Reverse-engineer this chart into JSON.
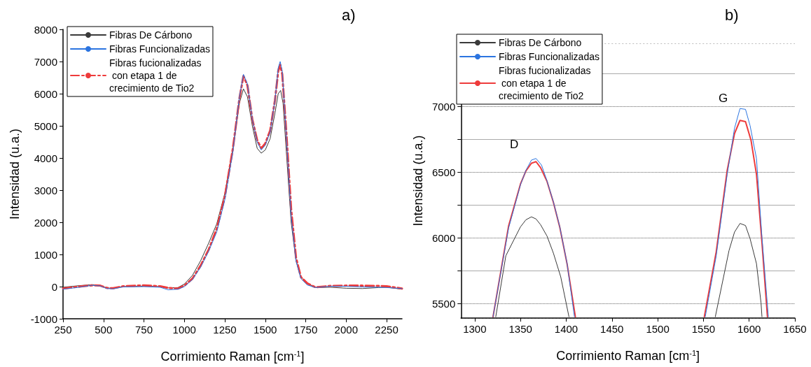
{
  "chart_data": [
    {
      "type": "line",
      "title": "a)",
      "xlabel": "Corrimiento Raman [cm$^{-1}$]",
      "ylabel": "Intensidad (u.a.)",
      "xlim": [
        250,
        2345
      ],
      "xticks": [
        250,
        500,
        750,
        1000,
        1250,
        1500,
        1750,
        2000,
        2250
      ],
      "ylim": [
        -1000,
        8000
      ],
      "yticks": [
        -1000,
        0,
        1000,
        2000,
        3000,
        4000,
        5000,
        6000,
        7000,
        8000
      ],
      "grid": false,
      "legend": "top left",
      "marker": "none",
      "series": [
        {
          "name": "Fibras De Cárbono",
          "color": "#3a3a3a",
          "line_style": "solid",
          "x": [
            250,
            350,
            430,
            470,
            520,
            560,
            620,
            750,
            850,
            900,
            960,
            1000,
            1050,
            1100,
            1150,
            1200,
            1250,
            1300,
            1340,
            1365,
            1390,
            1420,
            1450,
            1475,
            1500,
            1530,
            1560,
            1580,
            1595,
            1610,
            1630,
            1660,
            1690,
            1720,
            1760,
            1810,
            1900,
            2000,
            2100,
            2200,
            2250,
            2345
          ],
          "values": [
            -20,
            30,
            60,
            40,
            -40,
            -60,
            0,
            10,
            0,
            -40,
            -30,
            80,
            350,
            800,
            1350,
            1950,
            2900,
            4300,
            5700,
            6150,
            5900,
            5000,
            4300,
            4150,
            4250,
            4600,
            5400,
            6000,
            6100,
            5700,
            4200,
            2000,
            800,
            300,
            100,
            -30,
            -20,
            -50,
            -60,
            -30,
            -20,
            -80
          ]
        },
        {
          "name": "Fibras Funcionalizadas",
          "color": "#2b74e0",
          "line_style": "solid",
          "x": [
            250,
            350,
            430,
            480,
            520,
            560,
            620,
            750,
            850,
            900,
            960,
            1000,
            1050,
            1100,
            1150,
            1200,
            1250,
            1300,
            1340,
            1365,
            1390,
            1420,
            1450,
            1475,
            1500,
            1530,
            1560,
            1580,
            1592,
            1605,
            1630,
            1660,
            1690,
            1720,
            1760,
            1810,
            1900,
            2000,
            2100,
            2200,
            2250,
            2345
          ],
          "values": [
            -80,
            -20,
            40,
            20,
            -60,
            -70,
            -10,
            0,
            -20,
            -100,
            -80,
            0,
            220,
            600,
            1100,
            1700,
            2700,
            4200,
            5900,
            6600,
            6300,
            5200,
            4500,
            4250,
            4400,
            4800,
            5800,
            6800,
            7000,
            6700,
            4700,
            2200,
            800,
            250,
            50,
            -30,
            10,
            10,
            -10,
            -20,
            -30,
            -60
          ]
        },
        {
          "name": "Fibras fucionalizadas\n con etapa 1 de\ncrecimiento de Tio2",
          "color": "#ee3b3b",
          "line_style": "dashed",
          "x": [
            250,
            350,
            430,
            480,
            520,
            560,
            620,
            750,
            850,
            900,
            960,
            1000,
            1050,
            1100,
            1150,
            1200,
            1250,
            1300,
            1340,
            1365,
            1390,
            1420,
            1450,
            1475,
            1500,
            1530,
            1560,
            1580,
            1592,
            1605,
            1630,
            1660,
            1690,
            1720,
            1760,
            1810,
            1900,
            2000,
            2100,
            2200,
            2250,
            2345
          ],
          "values": [
            -60,
            0,
            40,
            30,
            -40,
            -50,
            10,
            40,
            10,
            -40,
            -60,
            30,
            250,
            650,
            1150,
            1800,
            2800,
            4300,
            5850,
            6550,
            6250,
            5200,
            4550,
            4300,
            4450,
            4850,
            5800,
            6700,
            6900,
            6600,
            4800,
            2400,
            900,
            300,
            100,
            -20,
            20,
            30,
            30,
            20,
            10,
            -60
          ]
        }
      ]
    },
    {
      "type": "line",
      "title": "b)",
      "xlabel": "Corrimiento Raman [cm$^{-1}$]",
      "ylabel": "Intensidad (u.a.)",
      "xlim": [
        1285,
        1650
      ],
      "xticks": [
        1300,
        1350,
        1400,
        1450,
        1500,
        1550,
        1600,
        1650
      ],
      "ylim": [
        5390,
        7480
      ],
      "yticks": [
        5500,
        {
          "value": 5750,
          "label": null
        },
        6000,
        {
          "value": 6250,
          "label": null
        },
        6500,
        {
          "value": 6750,
          "label": null
        },
        7000,
        {
          "value": 7250,
          "label": null
        }
      ],
      "grid": "y",
      "legend": "top left",
      "marker": "none",
      "annotations": [
        "D",
        "G"
      ],
      "series": [
        {
          "name": "Fibras De Cárbono",
          "color": "#3a3a3a",
          "line_style": "solid",
          "x": [
            1323,
            1334,
            1350,
            1356,
            1362,
            1367,
            1372,
            1379,
            1386,
            1394,
            1403,
            1480,
            1563,
            1578,
            1584,
            1590,
            1596,
            1601,
            1608,
            1613,
            1614
          ],
          "values": [
            5400,
            5864,
            6084,
            6138,
            6160,
            6144,
            6100,
            6014,
            5884,
            5704,
            5400,
            null,
            5400,
            5904,
            6044,
            6110,
            6094,
            5994,
            5804,
            5504,
            5400
          ]
        },
        {
          "name": "Fibras Funcionalizadas",
          "color": "#2b74e0",
          "line_style": "solid",
          "x": [
            1320,
            1337,
            1350,
            1356,
            1362,
            1367,
            1373,
            1379,
            1386,
            1393,
            1401,
            1409,
            1480,
            1552,
            1564,
            1576,
            1584,
            1590,
            1596,
            1601,
            1608,
            1614,
            1621
          ],
          "values": [
            5400,
            6074,
            6404,
            6514,
            6592,
            6604,
            6554,
            6434,
            6274,
            6084,
            5804,
            5400,
            null,
            5400,
            5864,
            6484,
            6834,
            6984,
            6978,
            6854,
            6604,
            6004,
            5400
          ]
        },
        {
          "name": "Fibras fucionalizadas\n con etapa 1 de\ncrecimiento de Tio2",
          "color": "#ee3b3b",
          "line_style": "solid",
          "x": [
            1320,
            1337,
            1350,
            1356,
            1362,
            1367,
            1372,
            1379,
            1386,
            1393,
            1401,
            1410,
            1480,
            1551,
            1564,
            1576,
            1584,
            1590,
            1596,
            1602,
            1608,
            1614,
            1620
          ],
          "values": [
            5400,
            6090,
            6410,
            6510,
            6568,
            6580,
            6534,
            6430,
            6270,
            6080,
            5800,
            5400,
            null,
            5400,
            5894,
            6514,
            6794,
            6894,
            6884,
            6744,
            6484,
            5964,
            5400
          ]
        }
      ]
    }
  ]
}
